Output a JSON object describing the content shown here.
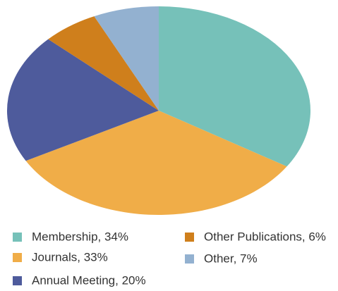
{
  "chart_data": {
    "type": "pie",
    "categories": [
      "Membership, 34%",
      "Journals, 33%",
      "Annual Meeting, 20%",
      "Other Publications, 6%",
      "Other, 7%"
    ],
    "values": [
      34,
      33,
      20,
      6,
      7
    ],
    "colors": [
      "#76c1b9",
      "#f0ad48",
      "#4e5b9c",
      "#cf7f1c",
      "#93b1d0"
    ]
  }
}
